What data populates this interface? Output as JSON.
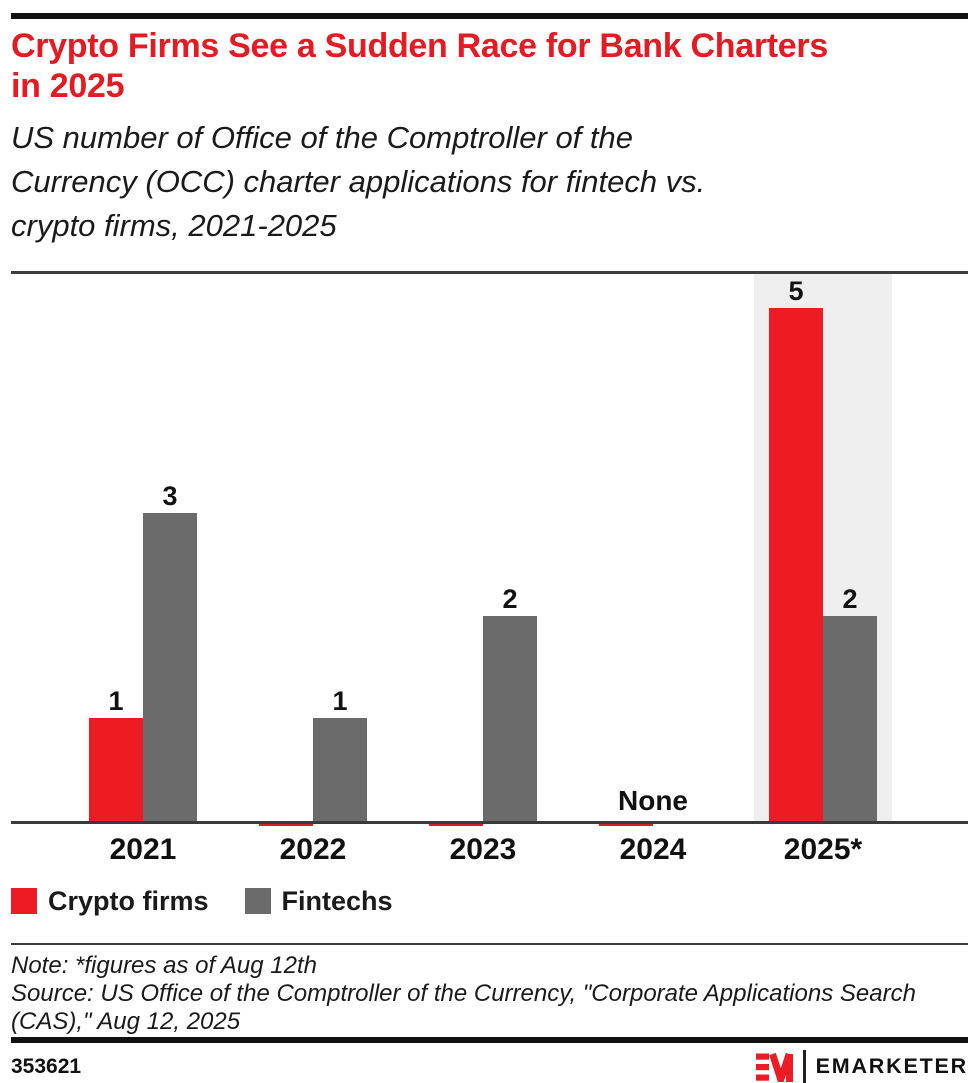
{
  "header": {
    "title_lines": [
      "Crypto Firms See a Sudden Race for Bank Charters",
      "in 2025"
    ],
    "subtitle_lines": [
      "US number of Office of the Comptroller of the",
      "Currency (OCC) charter applications for fintech vs.",
      "crypto firms, 2021-2025"
    ]
  },
  "chart_data": {
    "type": "bar",
    "title": "Crypto Firms See a Sudden Race for Bank Charters in 2025",
    "subtitle": "US number of Office of the Comptroller of the Currency (OCC) charter applications for fintech vs. crypto firms, 2021-2025",
    "categories": [
      "2021",
      "2022",
      "2023",
      "2024",
      "2025*"
    ],
    "series": [
      {
        "name": "Crypto firms",
        "color": "#ed1c24",
        "values": [
          1,
          0,
          0,
          0,
          5
        ]
      },
      {
        "name": "Fintechs",
        "color": "#6b6b6b",
        "values": [
          3,
          1,
          2,
          0,
          2
        ]
      }
    ],
    "value_labels": [
      "1",
      "3",
      "1",
      "2",
      "None",
      "5",
      "2"
    ],
    "none_label": {
      "category": "2024",
      "text": "None"
    },
    "highlight_category": "2025*",
    "highlight_color": "#efefef",
    "zero_sliver_color": "#d91e26",
    "xlabel": "",
    "ylabel": "",
    "ylim": [
      0,
      5.35
    ],
    "grid": false,
    "legend_position": "bottom"
  },
  "legend": {
    "items": [
      {
        "label": "Crypto firms",
        "color": "#ed1c24"
      },
      {
        "label": "Fintechs",
        "color": "#6b6b6b"
      }
    ]
  },
  "notes": {
    "lines": [
      "Note: *figures as of Aug 12th",
      "Source: US Office of the Comptroller of the Currency, \"Corporate Applications Search",
      "(CAS),\" Aug 12, 2025"
    ]
  },
  "footer": {
    "chart_id": "353621",
    "brand": "EMARKETER",
    "logo_mark": "EM",
    "brand_color": "#ed1c24"
  }
}
